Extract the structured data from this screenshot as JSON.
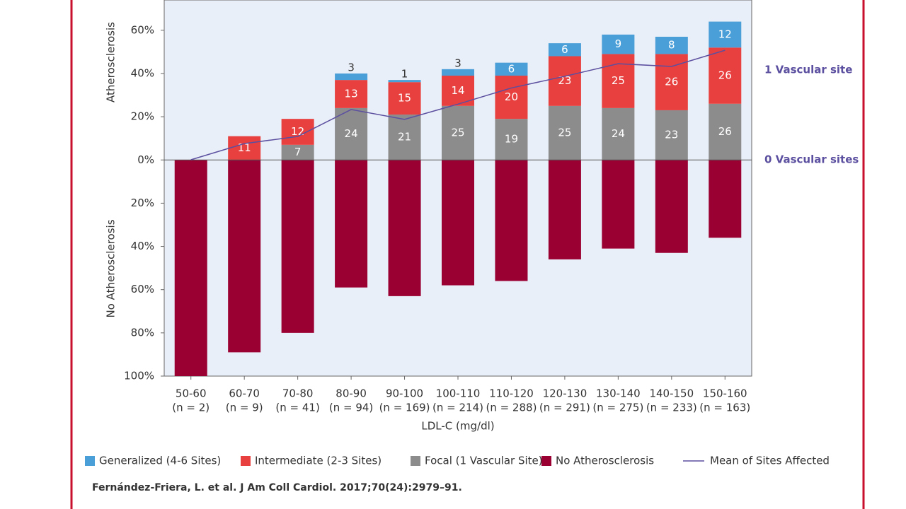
{
  "chart_data": {
    "type": "bar",
    "y_axis_label_top": "Atherosclerosis",
    "y_axis_label_bottom": "No Atherosclerosis",
    "x_axis_label": "LDL-C (mg/dl)",
    "categories": [
      "50-60",
      "60-70",
      "70-80",
      "80-90",
      "90-100",
      "100-110",
      "110-120",
      "120-130",
      "130-140",
      "140-150",
      "150-160"
    ],
    "category_counts": [
      "(n = 2)",
      "(n = 9)",
      "(n = 41)",
      "(n = 94)",
      "(n = 169)",
      "(n = 214)",
      "(n = 288)",
      "(n = 291)",
      "(n = 275)",
      "(n = 233)",
      "(n = 163)"
    ],
    "series": [
      {
        "name": "Generalized (4-6 Sites)",
        "color": "#4a9fd8",
        "stack": "up",
        "values": [
          null,
          null,
          null,
          3,
          1,
          3,
          6,
          6,
          9,
          8,
          12
        ]
      },
      {
        "name": "Intermediate (2-3 Sites)",
        "color": "#e8403f",
        "stack": "up",
        "values": [
          null,
          11,
          12,
          13,
          15,
          14,
          20,
          23,
          25,
          26,
          26
        ]
      },
      {
        "name": "Focal (1 Vascular Site)",
        "color": "#8c8c8c",
        "stack": "up",
        "values": [
          null,
          null,
          7,
          24,
          21,
          25,
          19,
          25,
          24,
          23,
          26
        ]
      },
      {
        "name": "No Atherosclerosis",
        "color": "#9b0032",
        "stack": "down",
        "values": [
          -100,
          -89,
          -80,
          -59,
          -63,
          -58,
          -56,
          -46,
          -41,
          -43,
          -36
        ]
      },
      {
        "name": "Mean of Sites Affected",
        "color": "#5b4fa0",
        "type": "line",
        "axis": "y2",
        "values": [
          0,
          0.18,
          0.26,
          0.56,
          0.45,
          0.62,
          0.8,
          0.93,
          1.07,
          1.04,
          1.22
        ]
      }
    ],
    "ylim": [
      -100,
      74
    ],
    "yticks": [
      {
        "value": 60,
        "label": "60%"
      },
      {
        "value": 40,
        "label": "40%"
      },
      {
        "value": 20,
        "label": "20%"
      },
      {
        "value": 0,
        "label": "0%"
      },
      {
        "value": -20,
        "label": "20%"
      },
      {
        "value": -40,
        "label": "40%"
      },
      {
        "value": -60,
        "label": "60%"
      },
      {
        "value": -80,
        "label": "80%"
      },
      {
        "value": -100,
        "label": "100%"
      }
    ],
    "y2lim": [
      -2.41,
      1.78
    ],
    "y2ticks": [
      {
        "value": 1,
        "label": "1 Vascular site"
      },
      {
        "value": 0,
        "label": "0 Vascular sites"
      }
    ],
    "legend": "bottom",
    "source": "Fernández-Friera, L. et al. J Am Coll Cardiol. 2017;70(24):2979–91."
  }
}
